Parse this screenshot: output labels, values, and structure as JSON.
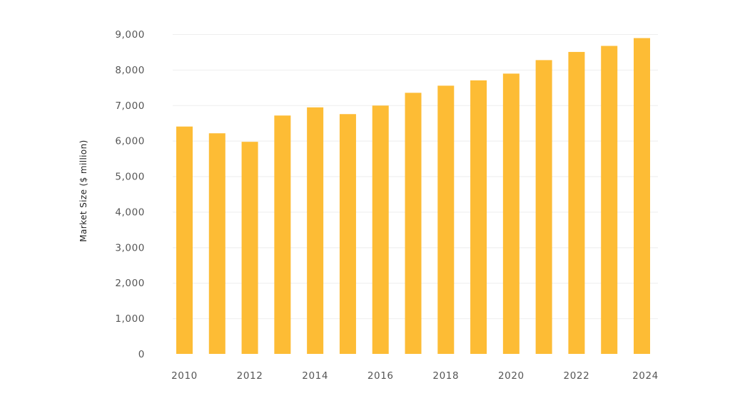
{
  "chart_data": {
    "type": "bar",
    "title": "",
    "xlabel": "",
    "ylabel": "Market Size ($ million)",
    "categories": [
      "2010",
      "2011",
      "2012",
      "2013",
      "2014",
      "2015",
      "2016",
      "2017",
      "2018",
      "2019",
      "2020",
      "2021",
      "2022",
      "2023",
      "2024"
    ],
    "x_tick_labels": [
      "2010",
      "2012",
      "2014",
      "2016",
      "2018",
      "2020",
      "2022",
      "2024"
    ],
    "y_tick_labels": [
      "0",
      "1,000",
      "2,000",
      "3,000",
      "4,000",
      "5,000",
      "6,000",
      "7,000",
      "8,000",
      "9,000"
    ],
    "values": [
      6400,
      6210,
      5970,
      6710,
      6940,
      6750,
      6990,
      7350,
      7550,
      7700,
      7890,
      8270,
      8500,
      8670,
      8890
    ],
    "ylim": [
      0,
      9000
    ],
    "y_tick_step": 1000,
    "grid": true,
    "legend": "none",
    "bar_color": "#FDBC35",
    "grid_color": "#eeeeee"
  }
}
